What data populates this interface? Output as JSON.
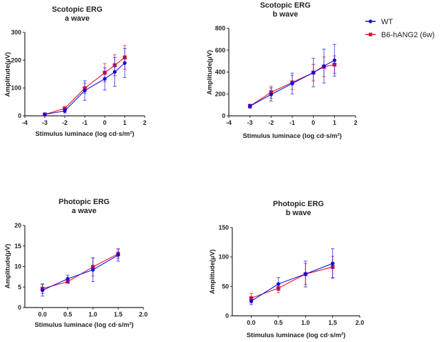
{
  "legend": [
    {
      "name": "WT",
      "color": "#1010e0",
      "marker": "circle"
    },
    {
      "name": "B6-hANG2 (6w)",
      "color": "#e0102a",
      "marker": "square"
    }
  ],
  "chart_data": [
    {
      "id": "scotopic-a",
      "type": "line",
      "title": [
        "Scotopic ERG",
        "a wave"
      ],
      "xlabel": "Stimulus luminace (log cd·s/m²)",
      "ylabel": "Amplitude(μV)",
      "xlim": [
        -4,
        2
      ],
      "ylim": [
        0,
        300
      ],
      "xticks": [
        -4,
        -3,
        -2,
        -1,
        0,
        1,
        2
      ],
      "xtick_labels": [
        "-4",
        "-3",
        "-2",
        "-1",
        "0",
        "1",
        "2"
      ],
      "yticks": [
        0,
        100,
        200,
        300
      ],
      "x": [
        -3,
        -2,
        -1,
        0,
        0.5,
        1
      ],
      "series": [
        {
          "name": "WT",
          "values": [
            5,
            18,
            91,
            133,
            158,
            190
          ],
          "errors": [
            3,
            8,
            35,
            40,
            52,
            52
          ]
        },
        {
          "name": "B6-hANG2 (6w)",
          "values": [
            5,
            27,
            99,
            155,
            182,
            210
          ],
          "errors": [
            2,
            5,
            18,
            33,
            38,
            43
          ]
        }
      ]
    },
    {
      "id": "scotopic-b",
      "type": "line",
      "title": [
        "Scotopic ERG",
        "b wave"
      ],
      "xlabel": "Stimulus luminace (log cd·s/m²)",
      "ylabel": "Amplitude(μV)",
      "xlim": [
        -4,
        2
      ],
      "ylim": [
        0,
        800
      ],
      "xticks": [
        -4,
        -3,
        -2,
        -1,
        0,
        1,
        2
      ],
      "xtick_labels": [
        "-4",
        "-3",
        "-2",
        "-1",
        "0",
        "1",
        "2"
      ],
      "yticks": [
        0,
        200,
        400,
        600,
        800
      ],
      "x": [
        -3,
        -2,
        -1,
        0,
        0.5,
        1
      ],
      "series": [
        {
          "name": "WT",
          "values": [
            88,
            195,
            295,
            395,
            455,
            508
          ],
          "errors": [
            18,
            60,
            95,
            130,
            155,
            145
          ]
        },
        {
          "name": "B6-hANG2 (6w)",
          "values": [
            90,
            215,
            305,
            395,
            448,
            468
          ],
          "errors": [
            15,
            55,
            65,
            75,
            90,
            80
          ]
        }
      ]
    },
    {
      "id": "photopic-a",
      "type": "line",
      "title": [
        "Photopic ERG",
        "a wave"
      ],
      "xlabel": "Stimulus luminace (log cd·s/m²)",
      "ylabel": "Amplitude(μV)",
      "xlim": [
        -0.35,
        2.0
      ],
      "ylim": [
        0,
        20
      ],
      "xticks": [
        0,
        0.5,
        1.0,
        1.5,
        2.0
      ],
      "xtick_labels": [
        "0.0",
        "0.5",
        "1.0",
        "1.5",
        "2.0"
      ],
      "yticks": [
        0,
        5,
        10,
        15,
        20
      ],
      "x": [
        0,
        0.5,
        1.0,
        1.5
      ],
      "series": [
        {
          "name": "WT",
          "values": [
            4.2,
            7.0,
            9.2,
            12.8
          ],
          "errors": [
            1.4,
            0.9,
            2.9,
            1.5
          ]
        },
        {
          "name": "B6-hANG2 (6w)",
          "values": [
            4.6,
            6.3,
            9.9,
            13.1
          ],
          "errors": [
            1.2,
            0.4,
            2.2,
            1.2
          ]
        }
      ]
    },
    {
      "id": "photopic-b",
      "type": "line",
      "title": [
        "Photopic ERG",
        "b wave"
      ],
      "xlabel": "Stimulus luminace (log cd·s/m²)",
      "ylabel": "Amplitude(μV)",
      "xlim": [
        -0.35,
        2.0
      ],
      "ylim": [
        0,
        150
      ],
      "xticks": [
        0,
        0.5,
        1.0,
        1.5,
        2.0
      ],
      "xtick_labels": [
        "0.0",
        "0.5",
        "1.0",
        "1.5",
        "2.0"
      ],
      "yticks": [
        0,
        50,
        100,
        150
      ],
      "x": [
        0,
        0.5,
        1.0,
        1.5
      ],
      "series": [
        {
          "name": "WT",
          "values": [
            25,
            54,
            71,
            89
          ],
          "errors": [
            6,
            11,
            22,
            25
          ]
        },
        {
          "name": "B6-hANG2 (6w)",
          "values": [
            30,
            47,
            71,
            83
          ],
          "errors": [
            8,
            8,
            18,
            18
          ]
        }
      ]
    }
  ]
}
